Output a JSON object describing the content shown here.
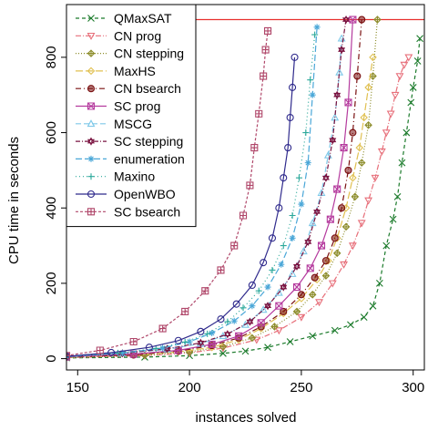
{
  "chart_data": {
    "type": "line",
    "xlabel": "instances solved",
    "ylabel": "CPU time in seconds",
    "xlim": [
      145,
      305
    ],
    "ylim": [
      -30,
      940
    ],
    "x_ticks": [
      150,
      200,
      250,
      300
    ],
    "y_ticks": [
      0,
      200,
      400,
      600,
      800
    ],
    "timeout_line": {
      "y": 900,
      "color": "#e8302e"
    },
    "legend_position": "top-left",
    "series": [
      {
        "name": "QMaxSAT",
        "color": "#1a7a2a",
        "marker": "x",
        "dash": "4,3",
        "x": [
          145,
          180,
          200,
          215,
          225,
          235,
          245,
          255,
          265,
          272,
          278,
          282,
          285,
          288,
          291,
          293,
          295,
          297,
          299,
          300,
          302,
          303
        ],
        "y": [
          2,
          4,
          8,
          14,
          20,
          30,
          45,
          60,
          75,
          90,
          110,
          140,
          200,
          300,
          370,
          430,
          520,
          600,
          680,
          720,
          790,
          850
        ]
      },
      {
        "name": "CN prog",
        "color": "#e76f7a",
        "marker": "tri-down",
        "dash": "6,2,1,2",
        "x": [
          145,
          180,
          200,
          215,
          230,
          240,
          250,
          258,
          264,
          269,
          273,
          277,
          280,
          283,
          286,
          288,
          290,
          292,
          294,
          296,
          298
        ],
        "y": [
          3,
          8,
          15,
          28,
          50,
          75,
          110,
          150,
          200,
          250,
          300,
          360,
          420,
          480,
          550,
          600,
          650,
          700,
          750,
          780,
          800
        ]
      },
      {
        "name": "CN stepping",
        "color": "#8c8c2a",
        "marker": "diamond-plus",
        "dash": "1,2",
        "x": [
          145,
          180,
          200,
          215,
          228,
          238,
          248,
          255,
          261,
          266,
          270,
          274,
          277,
          280,
          282,
          284
        ],
        "y": [
          3,
          9,
          18,
          32,
          55,
          85,
          125,
          170,
          220,
          280,
          350,
          430,
          520,
          620,
          750,
          900
        ]
      },
      {
        "name": "MaxHS",
        "color": "#e0c050",
        "marker": "diamond",
        "dash": "8,3",
        "x": [
          145,
          175,
          195,
          210,
          222,
          232,
          242,
          250,
          257,
          262,
          266,
          270,
          273,
          276,
          278,
          280,
          282
        ],
        "y": [
          4,
          10,
          18,
          30,
          50,
          80,
          120,
          160,
          210,
          260,
          320,
          400,
          480,
          560,
          640,
          720,
          800
        ]
      },
      {
        "name": "CN bsearch",
        "color": "#7a1010",
        "marker": "circle-dot",
        "dash": "6,3,1,3",
        "x": [
          145,
          175,
          195,
          210,
          222,
          232,
          242,
          250,
          256,
          261,
          265,
          268,
          271,
          273,
          275,
          277
        ],
        "y": [
          4,
          10,
          20,
          35,
          55,
          85,
          125,
          170,
          215,
          260,
          320,
          400,
          500,
          600,
          750,
          900
        ]
      },
      {
        "name": "SC prog",
        "color": "#b53b9e",
        "marker": "square-x",
        "dash": "",
        "x": [
          145,
          175,
          195,
          210,
          222,
          232,
          240,
          248,
          254,
          259,
          263,
          266,
          269,
          271,
          273
        ],
        "y": [
          5,
          12,
          22,
          38,
          60,
          95,
          140,
          190,
          240,
          300,
          370,
          450,
          560,
          680,
          900
        ]
      },
      {
        "name": "MSCG",
        "color": "#7ec8e8",
        "marker": "triangle",
        "dash": "6,3",
        "x": [
          145,
          170,
          190,
          205,
          215,
          225,
          233,
          240,
          246,
          251,
          255,
          259,
          262,
          265,
          267,
          268
        ],
        "y": [
          6,
          14,
          25,
          40,
          60,
          90,
          130,
          175,
          225,
          285,
          360,
          440,
          540,
          640,
          760,
          850
        ]
      },
      {
        "name": "SC stepping",
        "color": "#7a1340",
        "marker": "star",
        "dash": "5,2,1,2",
        "x": [
          145,
          170,
          190,
          205,
          217,
          227,
          235,
          242,
          248,
          253,
          257,
          261,
          264,
          266,
          268,
          270
        ],
        "y": [
          6,
          14,
          26,
          42,
          65,
          98,
          140,
          190,
          245,
          310,
          390,
          480,
          580,
          700,
          820,
          900
        ]
      },
      {
        "name": "enumeration",
        "color": "#4aa7d8",
        "marker": "asterisk",
        "dash": "7,3",
        "x": [
          145,
          170,
          188,
          200,
          210,
          220,
          228,
          235,
          241,
          246,
          250,
          253,
          255,
          257
        ],
        "y": [
          5,
          15,
          28,
          45,
          68,
          100,
          140,
          190,
          250,
          320,
          410,
          520,
          700,
          880
        ]
      },
      {
        "name": "Maxino",
        "color": "#2aa89a",
        "marker": "plus",
        "dash": "1,3",
        "x": [
          145,
          168,
          185,
          198,
          208,
          217,
          224,
          231,
          237,
          242,
          246,
          249,
          252,
          254,
          256
        ],
        "y": [
          5,
          15,
          27,
          44,
          66,
          98,
          135,
          180,
          235,
          300,
          380,
          480,
          600,
          740,
          860
        ]
      },
      {
        "name": "OpenWBO",
        "color": "#2f2a8c",
        "marker": "circle",
        "dash": "",
        "x": [
          145,
          165,
          182,
          195,
          205,
          214,
          221,
          228,
          233,
          237,
          240,
          242,
          244,
          245,
          246,
          247
        ],
        "y": [
          6,
          16,
          30,
          48,
          72,
          105,
          145,
          195,
          255,
          320,
          400,
          480,
          560,
          640,
          720,
          800
        ]
      },
      {
        "name": "SC bsearch",
        "color": "#b0476a",
        "marker": "square-plus",
        "dash": "3,2",
        "x": [
          145,
          160,
          175,
          188,
          198,
          207,
          214,
          220,
          224,
          227,
          229,
          231,
          233,
          234,
          235
        ],
        "y": [
          8,
          22,
          45,
          80,
          125,
          180,
          235,
          300,
          380,
          460,
          560,
          650,
          750,
          820,
          870
        ]
      }
    ]
  }
}
